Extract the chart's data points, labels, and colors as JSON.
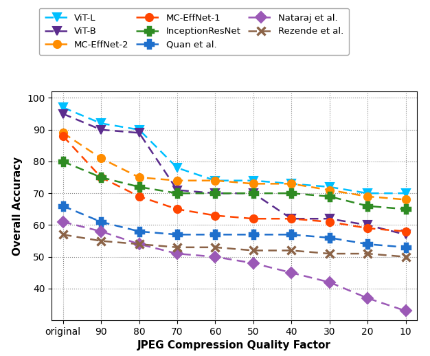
{
  "x_labels": [
    "original",
    "90",
    "80",
    "70",
    "60",
    "50",
    "40",
    "30",
    "20",
    "10"
  ],
  "x_positions": [
    0,
    1,
    2,
    3,
    4,
    5,
    6,
    7,
    8,
    9
  ],
  "series": [
    {
      "name": "ViT-L",
      "color": "#00BFFF",
      "marker": "v",
      "markersize": 8,
      "values": [
        97,
        92,
        90,
        78,
        74,
        74,
        73,
        72,
        70,
        70
      ]
    },
    {
      "name": "ViT-B",
      "color": "#5B2C8D",
      "marker": "v",
      "markersize": 8,
      "values": [
        95,
        90,
        89,
        71,
        70,
        70,
        62,
        62,
        60,
        57
      ]
    },
    {
      "name": "MC-EffNet-2",
      "color": "#FF8C00",
      "marker": "o",
      "markersize": 8,
      "values": [
        89,
        81,
        75,
        74,
        74,
        73,
        73,
        71,
        69,
        68
      ]
    },
    {
      "name": "MC-EffNet-1",
      "color": "#FF4500",
      "marker": "o",
      "markersize": 8,
      "values": [
        88,
        75,
        69,
        65,
        63,
        62,
        62,
        61,
        59,
        58
      ]
    },
    {
      "name": "InceptionResNet",
      "color": "#2E8B22",
      "marker": "P",
      "markersize": 9,
      "values": [
        80,
        75,
        72,
        70,
        70,
        70,
        70,
        69,
        66,
        65
      ]
    },
    {
      "name": "Quan et al.",
      "color": "#1E6FCC",
      "marker": "P",
      "markersize": 9,
      "values": [
        66,
        61,
        58,
        57,
        57,
        57,
        57,
        56,
        54,
        53
      ]
    },
    {
      "name": "Nataraj et al.",
      "color": "#9B59B6",
      "marker": "D",
      "markersize": 8,
      "values": [
        61,
        58,
        54,
        51,
        50,
        48,
        45,
        42,
        37,
        33
      ]
    },
    {
      "name": "Rezende et al.",
      "color": "#8B6347",
      "marker": "x",
      "markersize": 9,
      "values": [
        57,
        55,
        54,
        53,
        53,
        52,
        52,
        51,
        51,
        50
      ]
    }
  ],
  "xlabel": "JPEG Compression Quality Factor",
  "ylabel": "Overall Accuracy",
  "ylim": [
    30,
    102
  ],
  "yticks": [
    40,
    50,
    60,
    70,
    80,
    90,
    100
  ],
  "background_color": "#ffffff"
}
